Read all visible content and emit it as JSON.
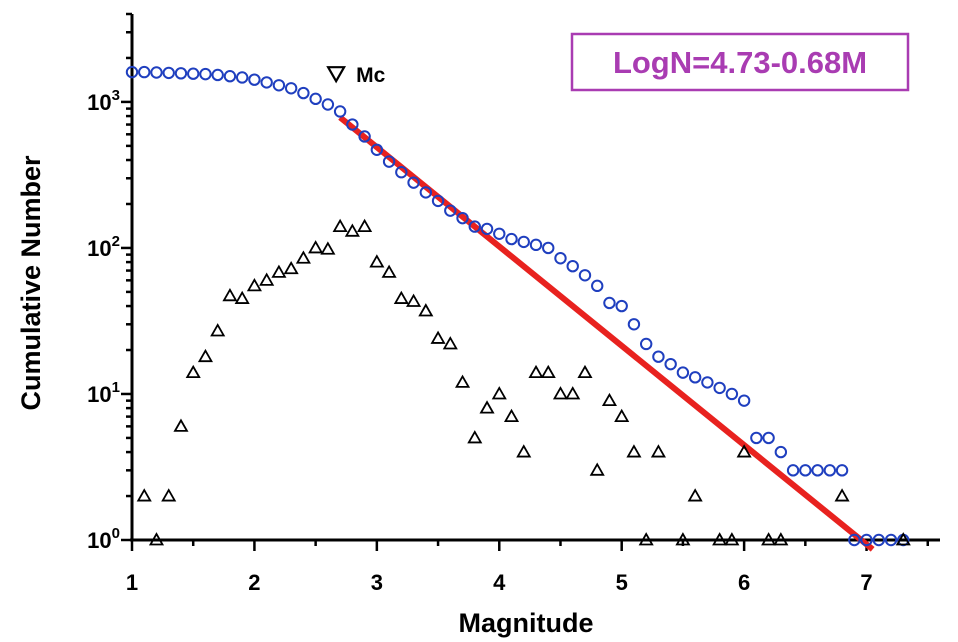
{
  "chart_data": {
    "type": "scatter",
    "xlabel": "Magnitude",
    "ylabel": "Cumulative Number",
    "xlim": [
      1,
      7.6
    ],
    "ylim": [
      1,
      4000
    ],
    "yscale": "log",
    "x_ticks": [
      "1",
      "2",
      "3",
      "4",
      "5",
      "6",
      "7"
    ],
    "y_ticks": [
      {
        "base": "10",
        "exp": "0"
      },
      {
        "base": "10",
        "exp": "1"
      },
      {
        "base": "10",
        "exp": "2"
      },
      {
        "base": "10",
        "exp": "3"
      }
    ],
    "grid": false,
    "series": [
      {
        "marker": "circle",
        "color": "#1f3fbf",
        "x": [
          1.0,
          1.1,
          1.2,
          1.3,
          1.4,
          1.5,
          1.6,
          1.7,
          1.8,
          1.9,
          2.0,
          2.1,
          2.2,
          2.3,
          2.4,
          2.5,
          2.6,
          2.7,
          2.8,
          2.9,
          3.0,
          3.1,
          3.2,
          3.3,
          3.4,
          3.5,
          3.6,
          3.7,
          3.8,
          3.9,
          4.0,
          4.1,
          4.2,
          4.3,
          4.4,
          4.5,
          4.6,
          4.7,
          4.8,
          4.9,
          5.0,
          5.1,
          5.2,
          5.3,
          5.4,
          5.5,
          5.6,
          5.7,
          5.8,
          5.9,
          6.0,
          6.1,
          6.2,
          6.3,
          6.4,
          6.5,
          6.6,
          6.7,
          6.8,
          6.9,
          7.0,
          7.1,
          7.2,
          7.3
        ],
        "y": [
          1600,
          1600,
          1590,
          1580,
          1570,
          1560,
          1550,
          1530,
          1500,
          1470,
          1420,
          1360,
          1300,
          1240,
          1150,
          1050,
          960,
          860,
          700,
          580,
          470,
          390,
          330,
          280,
          240,
          210,
          180,
          160,
          140,
          135,
          125,
          115,
          110,
          105,
          100,
          85,
          75,
          65,
          55,
          42,
          40,
          30,
          22,
          18,
          16,
          14,
          13,
          12,
          11,
          10,
          9,
          5,
          5,
          4,
          3,
          3,
          3,
          3,
          3,
          1,
          1,
          1,
          1,
          1
        ]
      },
      {
        "marker": "triangle",
        "color": "#000000",
        "x": [
          1.1,
          1.2,
          1.3,
          1.4,
          1.5,
          1.6,
          1.7,
          1.8,
          1.9,
          2.0,
          2.1,
          2.2,
          2.3,
          2.4,
          2.5,
          2.6,
          2.7,
          2.8,
          2.9,
          3.0,
          3.1,
          3.2,
          3.3,
          3.4,
          3.5,
          3.6,
          3.7,
          3.8,
          3.9,
          4.0,
          4.1,
          4.2,
          4.3,
          4.4,
          4.5,
          4.6,
          4.7,
          4.8,
          4.9,
          5.0,
          5.1,
          5.2,
          5.3,
          5.5,
          5.6,
          5.8,
          5.9,
          6.0,
          6.2,
          6.3,
          6.8,
          7.3
        ],
        "y": [
          2,
          1,
          2,
          6,
          14,
          18,
          27,
          47,
          45,
          55,
          60,
          68,
          72,
          85,
          100,
          98,
          140,
          130,
          140,
          80,
          68,
          45,
          43,
          37,
          24,
          22,
          12,
          5,
          8,
          10,
          7,
          4,
          14,
          14,
          10,
          10,
          14,
          3,
          9,
          7,
          4,
          1,
          4,
          1,
          2,
          1,
          1,
          4,
          1,
          1,
          2,
          1
        ]
      },
      {
        "type": "line",
        "color": "#e8221f",
        "intercept": 4.73,
        "slope": -0.68,
        "x_start": 2.7,
        "x_end": 7.05
      }
    ],
    "annotations": [
      {
        "text": "Mc",
        "marker": "triangle-down",
        "x": 2.7,
        "y": 1500
      },
      {
        "text": "LogN=4.73-0.68M",
        "position": "top-right",
        "color": "#a93cb2"
      }
    ]
  }
}
